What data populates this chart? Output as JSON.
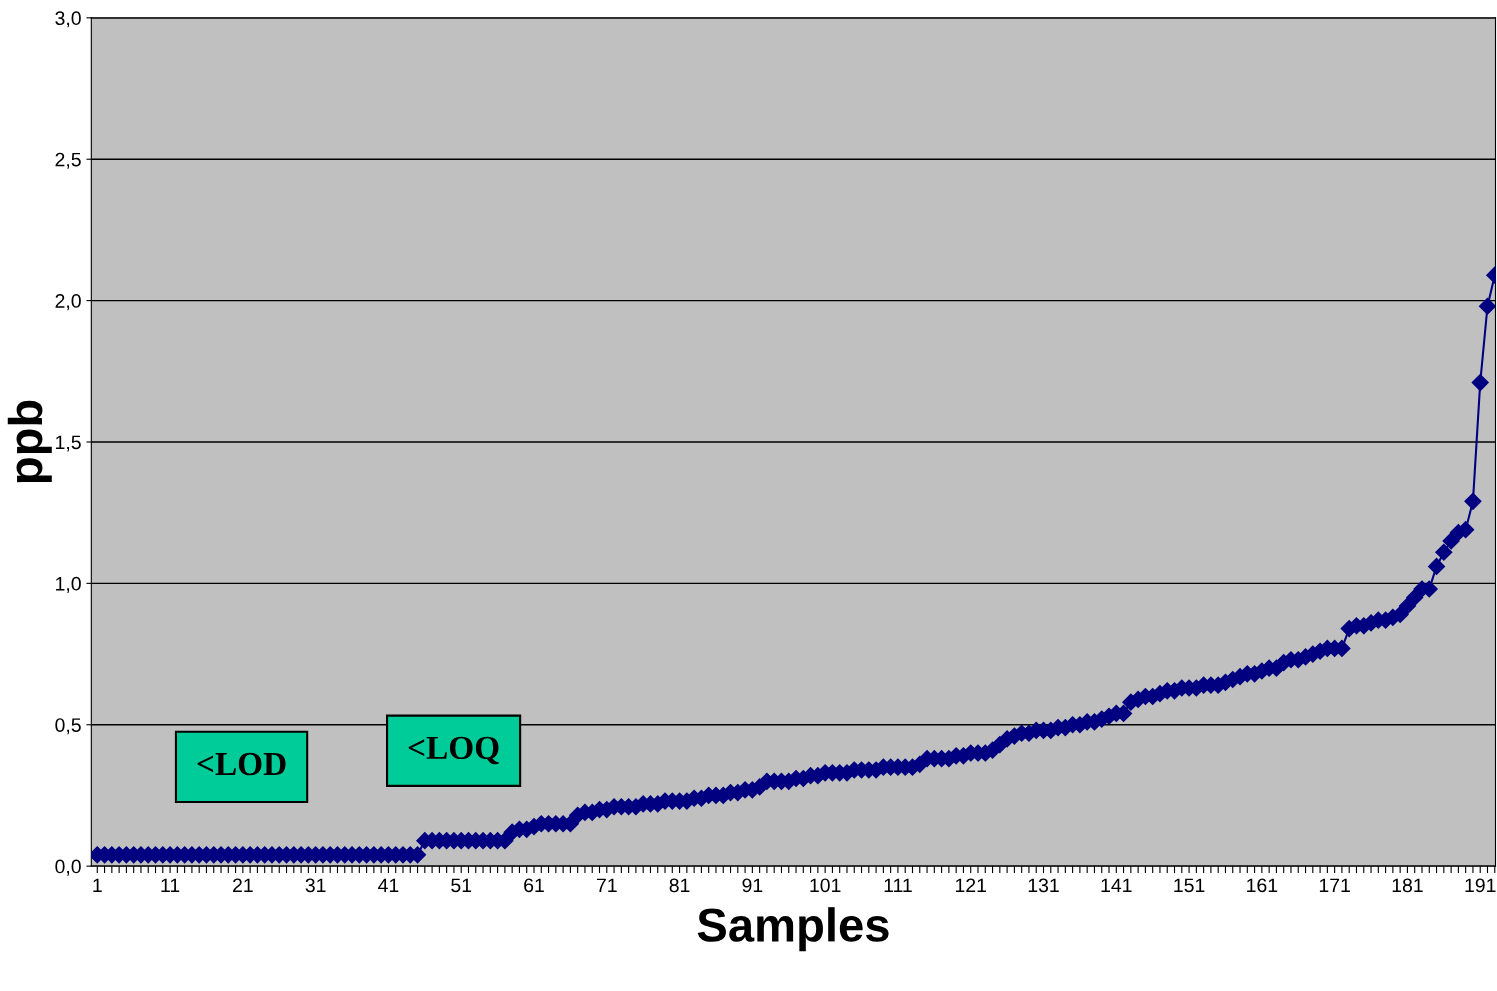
{
  "chart_data": {
    "type": "line",
    "xlabel": "Samples",
    "ylabel": "ppb",
    "categories": [
      "1",
      null,
      null,
      null,
      null,
      null,
      null,
      null,
      null,
      null,
      "11",
      null,
      null,
      null,
      null,
      null,
      null,
      null,
      null,
      null,
      "21",
      null,
      null,
      null,
      null,
      null,
      null,
      null,
      null,
      null,
      "31",
      null,
      null,
      null,
      null,
      null,
      null,
      null,
      null,
      null,
      "41",
      null,
      null,
      null,
      null,
      null,
      null,
      null,
      null,
      null,
      "51",
      null,
      null,
      null,
      null,
      null,
      null,
      null,
      null,
      null,
      "61",
      null,
      null,
      null,
      null,
      null,
      null,
      null,
      null,
      null,
      "71",
      null,
      null,
      null,
      null,
      null,
      null,
      null,
      null,
      null,
      "81",
      null,
      null,
      null,
      null,
      null,
      null,
      null,
      null,
      null,
      "91",
      null,
      null,
      null,
      null,
      null,
      null,
      null,
      null,
      null,
      "101",
      null,
      null,
      null,
      null,
      null,
      null,
      null,
      null,
      null,
      "111",
      null,
      null,
      null,
      null,
      null,
      null,
      null,
      null,
      null,
      "121",
      null,
      null,
      null,
      null,
      null,
      null,
      null,
      null,
      null,
      "131",
      null,
      null,
      null,
      null,
      null,
      null,
      null,
      null,
      null,
      "141",
      null,
      null,
      null,
      null,
      null,
      null,
      null,
      null,
      null,
      "151",
      null,
      null,
      null,
      null,
      null,
      null,
      null,
      null,
      null,
      "161",
      null,
      null,
      null,
      null,
      null,
      null,
      null,
      null,
      null,
      "171",
      null,
      null,
      null,
      null,
      null,
      null,
      null,
      null,
      null,
      "181",
      null,
      null,
      null,
      null,
      null,
      null,
      null,
      null,
      null,
      "191",
      null,
      null
    ],
    "series": [
      {
        "color": "#000080",
        "values": [
          0.04,
          0.04,
          0.04,
          0.04,
          0.04,
          0.04,
          0.04,
          0.04,
          0.04,
          0.04,
          0.04,
          0.04,
          0.04,
          0.04,
          0.04,
          0.04,
          0.04,
          0.04,
          0.04,
          0.04,
          0.04,
          0.04,
          0.04,
          0.04,
          0.04,
          0.04,
          0.04,
          0.04,
          0.04,
          0.04,
          0.04,
          0.04,
          0.04,
          0.04,
          0.04,
          0.04,
          0.04,
          0.04,
          0.04,
          0.04,
          0.04,
          0.04,
          0.04,
          0.04,
          0.04,
          0.09,
          0.09,
          0.09,
          0.09,
          0.09,
          0.09,
          0.09,
          0.09,
          0.09,
          0.09,
          0.09,
          0.09,
          0.12,
          0.13,
          0.13,
          0.14,
          0.15,
          0.15,
          0.15,
          0.15,
          0.15,
          0.18,
          0.19,
          0.19,
          0.2,
          0.2,
          0.21,
          0.21,
          0.21,
          0.21,
          0.22,
          0.22,
          0.22,
          0.23,
          0.23,
          0.23,
          0.23,
          0.24,
          0.24,
          0.25,
          0.25,
          0.25,
          0.26,
          0.26,
          0.27,
          0.27,
          0.28,
          0.3,
          0.3,
          0.3,
          0.3,
          0.31,
          0.31,
          0.32,
          0.32,
          0.33,
          0.33,
          0.33,
          0.33,
          0.34,
          0.34,
          0.34,
          0.34,
          0.35,
          0.35,
          0.35,
          0.35,
          0.35,
          0.36,
          0.38,
          0.38,
          0.38,
          0.38,
          0.39,
          0.39,
          0.4,
          0.4,
          0.4,
          0.41,
          0.43,
          0.45,
          0.46,
          0.47,
          0.47,
          0.48,
          0.48,
          0.48,
          0.49,
          0.49,
          0.5,
          0.5,
          0.51,
          0.51,
          0.52,
          0.53,
          0.54,
          0.54,
          0.58,
          0.59,
          0.6,
          0.6,
          0.61,
          0.62,
          0.62,
          0.63,
          0.63,
          0.63,
          0.64,
          0.64,
          0.64,
          0.65,
          0.66,
          0.67,
          0.68,
          0.68,
          0.69,
          0.7,
          0.7,
          0.72,
          0.73,
          0.73,
          0.74,
          0.75,
          0.76,
          0.77,
          0.77,
          0.77,
          0.84,
          0.85,
          0.85,
          0.86,
          0.87,
          0.87,
          0.88,
          0.89,
          0.92,
          0.95,
          0.98,
          0.98,
          1.06,
          1.11,
          1.15,
          1.18,
          1.19,
          1.29,
          1.71,
          1.98,
          2.09
        ]
      }
    ],
    "ylim": [
      0,
      3
    ],
    "yticks": [
      {
        "value": 0,
        "label": "0,0"
      },
      {
        "value": 0.5,
        "label": "0,5"
      },
      {
        "value": 1,
        "label": "1,0"
      },
      {
        "value": 1.5,
        "label": "1,5"
      },
      {
        "value": 2,
        "label": "2,0"
      },
      {
        "value": 2.5,
        "label": "2,5"
      },
      {
        "value": 3,
        "label": "3,0"
      }
    ],
    "grid": "y",
    "marker": "diamond",
    "line_style": "solid",
    "annotations": [
      "<LOD",
      "<LOQ"
    ]
  }
}
